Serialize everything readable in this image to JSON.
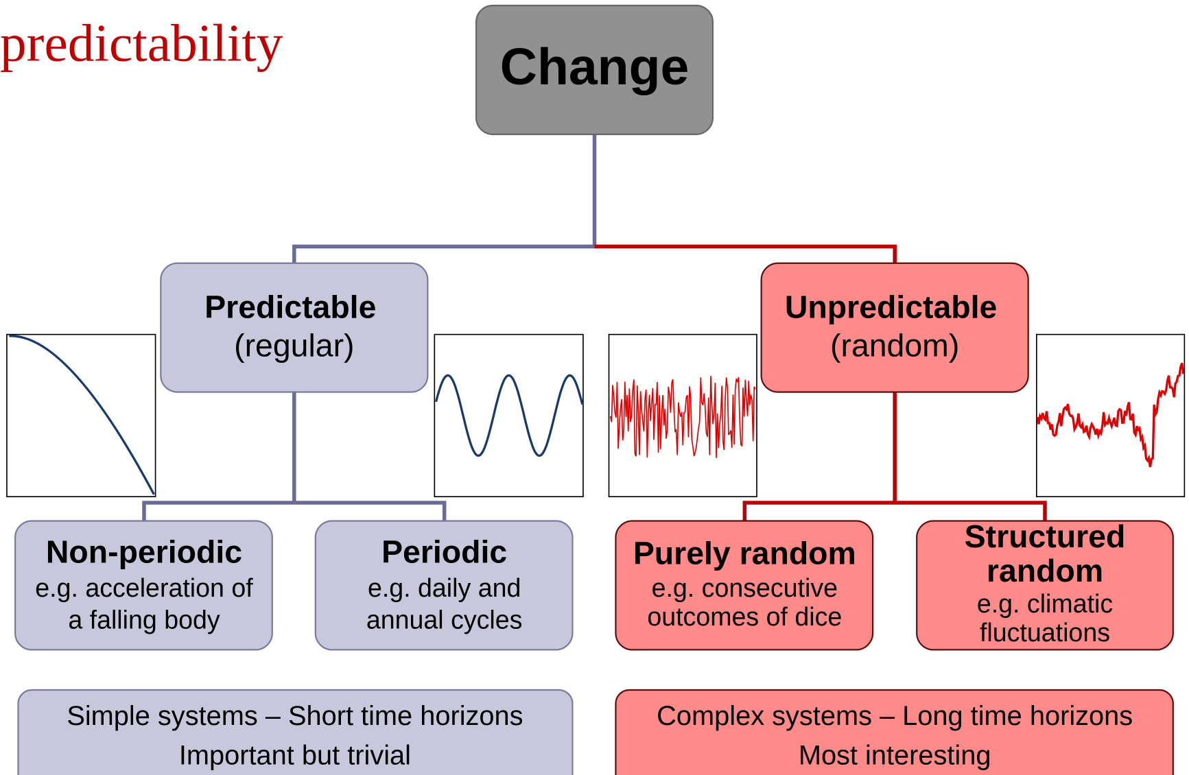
{
  "title": "predictability",
  "root": {
    "label": "Change"
  },
  "branches": [
    {
      "label": "Predictable",
      "sublabel": "(regular)"
    },
    {
      "label": "Unpredictable",
      "sublabel": "(random)"
    }
  ],
  "leaves": [
    {
      "label": [
        "Non-periodic"
      ],
      "example": [
        "e.g. acceleration of",
        "a falling body"
      ]
    },
    {
      "label": [
        "Periodic"
      ],
      "example": [
        "e.g. daily and",
        "annual cycles"
      ]
    },
    {
      "label": [
        "Purely random"
      ],
      "example": [
        "e.g. consecutive",
        "outcomes of dice"
      ]
    },
    {
      "label": [
        "Structured",
        "random"
      ],
      "example": [
        "e.g. climatic",
        "fluctuations"
      ]
    }
  ],
  "summaries": [
    {
      "lines": [
        "Simple systems – Short time horizons",
        "Important but trivial"
      ]
    },
    {
      "lines": [
        "Complex systems – Long time horizons",
        "Most interesting"
      ]
    }
  ]
}
